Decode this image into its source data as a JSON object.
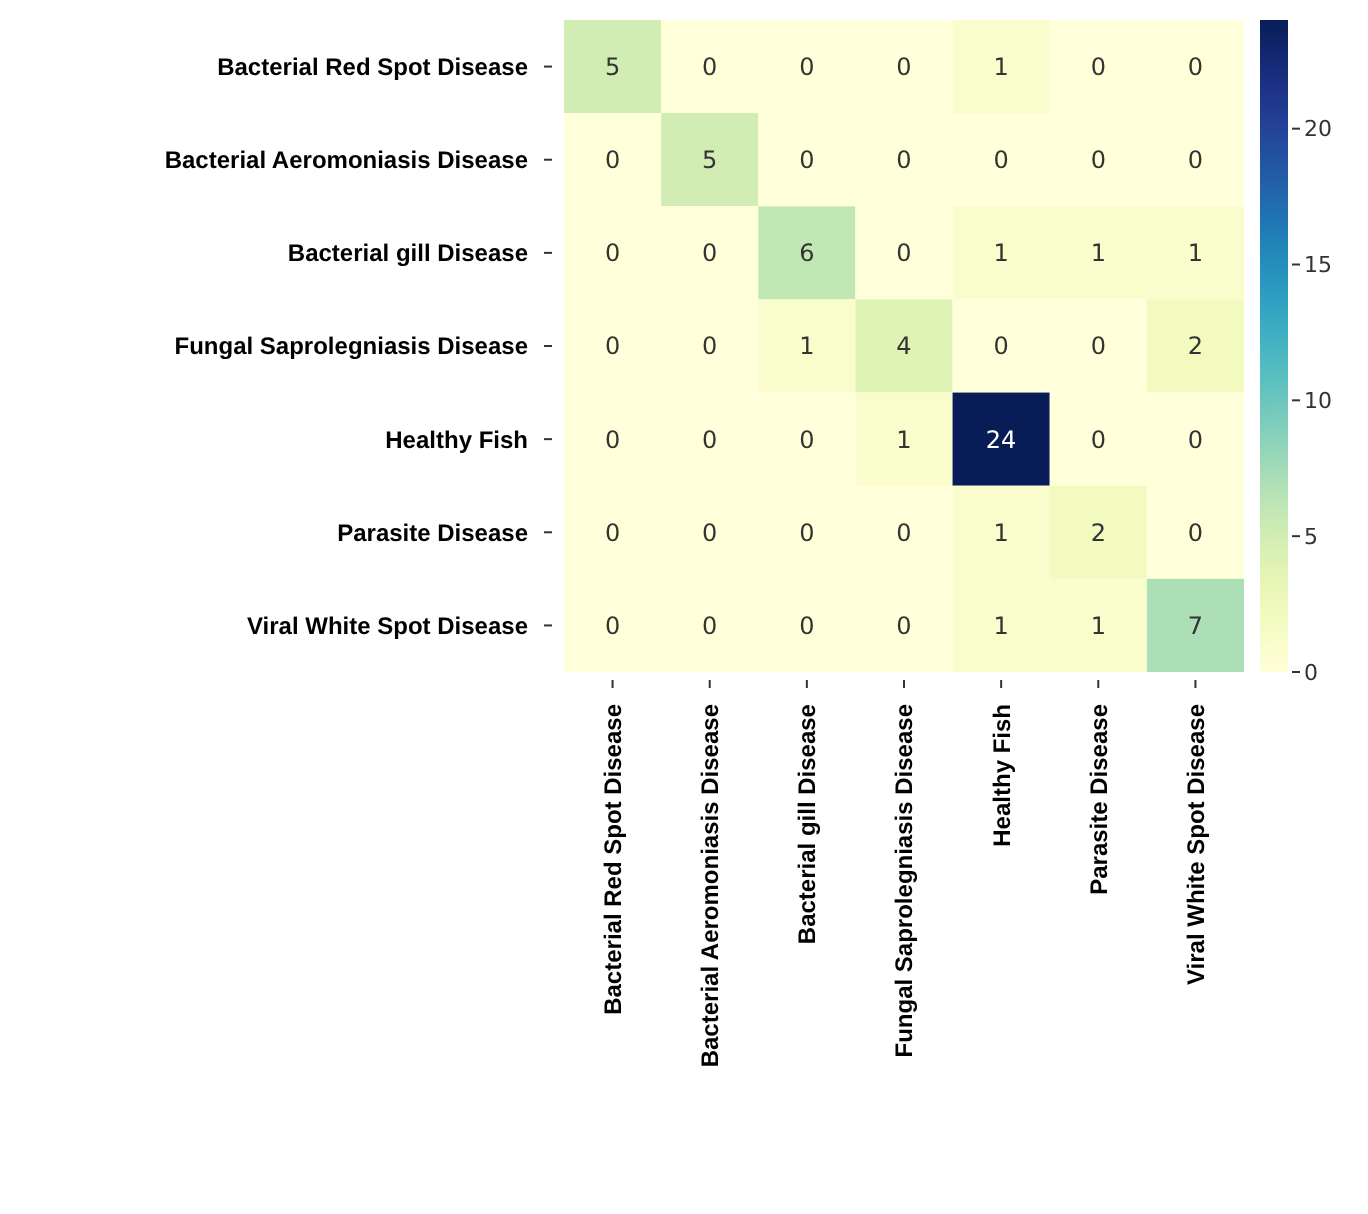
{
  "chart_data": {
    "type": "heatmap",
    "categories": [
      "Bacterial Red Spot Disease",
      "Bacterial Aeromoniasis  Disease",
      "Bacterial gill Disease",
      "Fungal Saprolegniasis Disease",
      "Healthy Fish",
      "Parasite Disease",
      "Viral White Spot Disease"
    ],
    "y_categories": [
      "Bacterial Red Spot Disease",
      "Bacterial Aeromoniasis Disease",
      "Bacterial gill Disease",
      "Fungal Saprolegniasis Disease",
      "Healthy Fish",
      "Parasite Disease",
      "Viral White Spot Disease"
    ],
    "cells": [
      [
        5,
        0,
        0,
        0,
        1,
        0,
        0
      ],
      [
        0,
        5,
        0,
        0,
        0,
        0,
        0
      ],
      [
        0,
        0,
        6,
        0,
        1,
        1,
        1
      ],
      [
        0,
        0,
        1,
        4,
        0,
        0,
        2
      ],
      [
        0,
        0,
        0,
        1,
        24,
        0,
        0
      ],
      [
        0,
        0,
        0,
        0,
        1,
        2,
        0
      ],
      [
        0,
        0,
        0,
        0,
        1,
        1,
        7
      ]
    ],
    "clim": [
      0,
      24
    ],
    "cticks": [
      0,
      5,
      10,
      15,
      20
    ],
    "data_labels": true
  }
}
